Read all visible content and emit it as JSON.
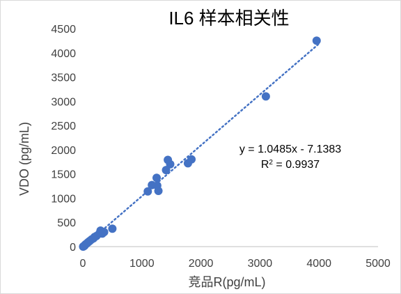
{
  "chart_data": {
    "type": "scatter",
    "title": "IL6 样本相关性",
    "xlabel": "竞品R(pg/mL)",
    "ylabel": "VDO (pg/mL)",
    "xlim": [
      0,
      5000
    ],
    "ylim": [
      0,
      4500
    ],
    "x_ticks": [
      "0",
      "1000",
      "2000",
      "3000",
      "4000",
      "5000"
    ],
    "y_ticks": [
      "0",
      "500",
      "1000",
      "1500",
      "2000",
      "2500",
      "3000",
      "3500",
      "4000",
      "4500"
    ],
    "grid": false,
    "legend": "none",
    "marker_color": "#4472c4",
    "trendline": {
      "slope": 1.0485,
      "intercept": -7.1383,
      "style": "dotted",
      "color": "#4472c4"
    },
    "equation": "y = 1.0485x - 7.1383",
    "r_squared": {
      "prefix": "R",
      "exponent": "2",
      "value": " = 0.9937"
    },
    "points": [
      {
        "x": 3960,
        "y": 4250
      },
      {
        "x": 3100,
        "y": 3100
      },
      {
        "x": 1440,
        "y": 1790
      },
      {
        "x": 1480,
        "y": 1700
      },
      {
        "x": 1410,
        "y": 1580
      },
      {
        "x": 1840,
        "y": 1800
      },
      {
        "x": 1780,
        "y": 1720
      },
      {
        "x": 1250,
        "y": 1420
      },
      {
        "x": 1170,
        "y": 1270
      },
      {
        "x": 1260,
        "y": 1260
      },
      {
        "x": 1100,
        "y": 1140
      },
      {
        "x": 1280,
        "y": 1150
      },
      {
        "x": 500,
        "y": 370
      },
      {
        "x": 360,
        "y": 300
      },
      {
        "x": 300,
        "y": 330
      },
      {
        "x": 280,
        "y": 270
      },
      {
        "x": 330,
        "y": 270
      },
      {
        "x": 230,
        "y": 220
      },
      {
        "x": 200,
        "y": 200
      },
      {
        "x": 180,
        "y": 170
      },
      {
        "x": 150,
        "y": 150
      },
      {
        "x": 120,
        "y": 120
      },
      {
        "x": 100,
        "y": 100
      },
      {
        "x": 80,
        "y": 80
      },
      {
        "x": 60,
        "y": 60
      },
      {
        "x": 40,
        "y": 40
      },
      {
        "x": 30,
        "y": 20
      },
      {
        "x": 20,
        "y": 10
      },
      {
        "x": 10,
        "y": 5
      },
      {
        "x": 5,
        "y": 0
      }
    ]
  }
}
